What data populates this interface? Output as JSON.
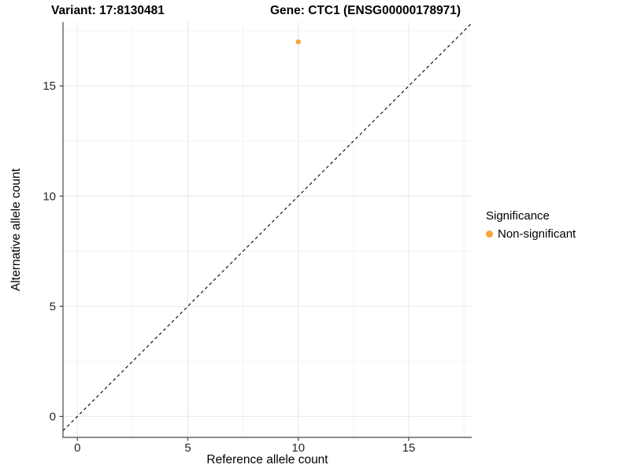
{
  "figure": {
    "variant_title": "Variant: 17:8130481",
    "gene_title": "Gene: CTC1 (ENSG00000178971)"
  },
  "axes": {
    "x_label": "Reference allele count",
    "y_label": "Alternative allele count"
  },
  "legend": {
    "title": "Significance",
    "items": [
      {
        "label": "Non-significant",
        "color": "#FBA33C",
        "marker": "dot"
      }
    ]
  },
  "chart_data": {
    "type": "scatter",
    "title": "Variant: 17:8130481",
    "subtitle": "Gene: CTC1 (ENSG00000178971)",
    "xlabel": "Reference allele count",
    "ylabel": "Alternative allele count",
    "xlim": [
      -0.65,
      17.85
    ],
    "ylim": [
      -0.95,
      17.9
    ],
    "x_ticks": [
      0,
      5,
      10,
      15
    ],
    "y_ticks": [
      0,
      5,
      10,
      15
    ],
    "x_minor_ticks": [
      2.5,
      7.5,
      12.5,
      17.5
    ],
    "y_minor_ticks": [
      2.5,
      7.5,
      12.5,
      17.5
    ],
    "grid": true,
    "legend_position": "right",
    "identity_line": {
      "slope": 1,
      "intercept": 0,
      "style": "dashed",
      "color": "#000000"
    },
    "series": [
      {
        "name": "Non-significant",
        "color": "#FBA33C",
        "points": [
          [
            10,
            17
          ]
        ]
      }
    ],
    "colors": {
      "major_grid": "#E7E7E7",
      "minor_grid": "#F3F3F3",
      "axis_line": "#474747",
      "tick_label": "#262626"
    }
  }
}
